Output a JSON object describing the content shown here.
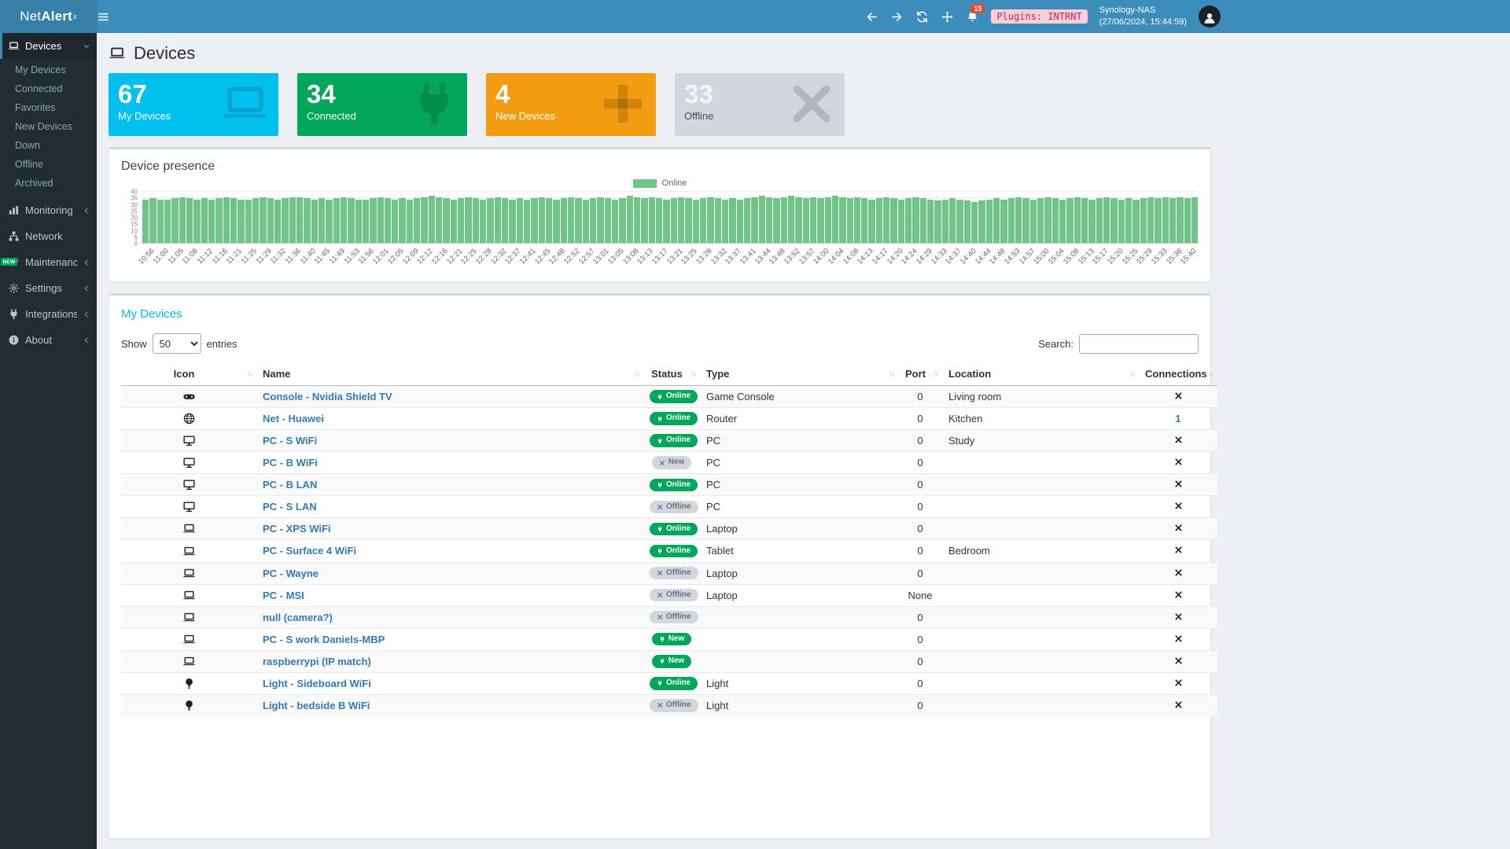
{
  "topbar": {
    "logo_light": "Net",
    "logo_bold": "Alert",
    "logo_sup": "x",
    "notification_count": "15",
    "plugins_badge": "Plugins: INTRNT",
    "host_name": "Synology-NAS",
    "host_time": "(27/06/2024, 15:44:59)"
  },
  "sidebar": {
    "devices_label": "Devices",
    "devices_sub": [
      "My Devices",
      "Connected",
      "Favorites",
      "New Devices",
      "Down",
      "Offline",
      "Archived"
    ],
    "items": [
      {
        "label": "Monitoring",
        "icon": "chart",
        "chevron": true
      },
      {
        "label": "Network",
        "icon": "network",
        "chevron": false
      },
      {
        "label": "Maintenance",
        "icon": "wrench",
        "chevron": true,
        "badge": "NEW"
      },
      {
        "label": "Settings",
        "icon": "gear",
        "chevron": true
      },
      {
        "label": "Integrations",
        "icon": "plug",
        "chevron": true
      },
      {
        "label": "About",
        "icon": "info",
        "chevron": true
      }
    ]
  },
  "page": {
    "title": "Devices"
  },
  "infoboxes": [
    {
      "value": "67",
      "label": "My Devices",
      "icon": "laptop",
      "color": "#00c0ef"
    },
    {
      "value": "34",
      "label": "Connected",
      "icon": "plug",
      "color": "#00a65a"
    },
    {
      "value": "4",
      "label": "New Devices",
      "icon": "plus",
      "color": "#f39c12"
    },
    {
      "value": "33",
      "label": "Offline",
      "icon": "times",
      "color": "#d2d6de",
      "dark_text": true
    }
  ],
  "presence": {
    "title": "Device presence"
  },
  "chart_data": {
    "type": "bar",
    "title": "Device presence",
    "legend": [
      "Online"
    ],
    "legend_position": "top-center",
    "color": "#70c487",
    "grid": true,
    "ylim": [
      0,
      40
    ],
    "yticks": [
      0,
      5,
      10,
      15,
      20,
      25,
      30,
      35,
      40
    ],
    "x_labels": [
      "10:56",
      "11:00",
      "11:05",
      "11:08",
      "11:12",
      "11:16",
      "11:21",
      "11:25",
      "11:29",
      "11:32",
      "11:36",
      "11:40",
      "11:45",
      "11:49",
      "11:53",
      "11:56",
      "12:01",
      "12:05",
      "12:09",
      "12:12",
      "12:16",
      "12:21",
      "12:25",
      "12:28",
      "12:32",
      "12:37",
      "12:41",
      "12:45",
      "12:48",
      "12:52",
      "12:57",
      "13:01",
      "13:05",
      "13:08",
      "13:13",
      "13:17",
      "13:21",
      "13:25",
      "13:28",
      "13:32",
      "13:37",
      "13:41",
      "13:44",
      "13:48",
      "13:52",
      "13:57",
      "14:00",
      "14:04",
      "14:08",
      "14:13",
      "14:17",
      "14:20",
      "14:24",
      "14:29",
      "14:33",
      "14:37",
      "14:40",
      "14:44",
      "14:48",
      "14:53",
      "14:57",
      "15:00",
      "15:04",
      "15:08",
      "15:13",
      "15:17",
      "15:20",
      "15:25",
      "15:29",
      "15:33",
      "15:36",
      "15:40"
    ],
    "values": [
      34,
      35,
      34,
      34,
      35,
      36,
      35,
      34,
      35,
      34,
      35,
      36,
      35,
      34,
      34,
      35,
      36,
      35,
      34,
      35,
      36,
      36,
      35,
      34,
      35,
      34,
      35,
      36,
      35,
      34,
      34,
      35,
      36,
      35,
      34,
      35,
      34,
      35,
      36,
      37,
      36,
      35,
      34,
      35,
      36,
      35,
      34,
      35,
      36,
      35,
      34,
      35,
      34,
      35,
      36,
      35,
      34,
      35,
      36,
      35,
      34,
      35,
      36,
      35,
      34,
      35,
      37,
      36,
      35,
      36,
      35,
      34,
      35,
      36,
      35,
      34,
      35,
      36,
      35,
      34,
      35,
      34,
      35,
      36,
      37,
      36,
      35,
      36,
      37,
      36,
      35,
      36,
      35,
      36,
      37,
      36,
      35,
      36,
      35,
      34,
      35,
      36,
      35,
      34,
      35,
      36,
      35,
      34,
      33,
      34,
      35,
      34,
      33,
      32,
      33,
      34,
      35,
      34,
      35,
      36,
      35,
      34,
      35,
      36,
      35,
      34,
      35,
      36,
      35,
      34,
      35,
      36,
      35,
      34,
      35,
      34,
      35,
      36,
      35,
      36,
      35,
      36,
      35,
      36
    ]
  },
  "devices_panel": {
    "title": "My Devices",
    "show_label": "Show",
    "page_size": "50",
    "entries_label": "entries",
    "search_label": "Search:",
    "columns": [
      "Icon",
      "Name",
      "Status",
      "Type",
      "Port",
      "Location",
      "Connections"
    ],
    "status_styles": {
      "online": {
        "bg": "#00a65a",
        "fg": "#ffffff",
        "icon": "plug"
      },
      "offline": {
        "bg": "#d2d6de",
        "fg": "#6b7178",
        "icon": "times"
      },
      "new-gray": {
        "bg": "#d2d6de",
        "fg": "#6b7178",
        "icon": "times"
      },
      "new-green": {
        "bg": "#00a65a",
        "fg": "#ffffff",
        "icon": "plug"
      }
    },
    "rows": [
      {
        "icon": "gamepad",
        "name": "Console - Nvidia Shield TV",
        "status": "Online",
        "status_type": "online",
        "type": "Game Console",
        "port": "0",
        "location": "Living room",
        "connections": "x"
      },
      {
        "icon": "globe",
        "name": "Net - Huawei",
        "status": "Online",
        "status_type": "online",
        "type": "Router",
        "port": "0",
        "location": "Kitchen",
        "connections": "1",
        "connections_is_link": true
      },
      {
        "icon": "desktop",
        "name": "PC - S WiFi",
        "status": "Online",
        "status_type": "online",
        "type": "PC",
        "port": "0",
        "location": "Study",
        "connections": "x"
      },
      {
        "icon": "desktop",
        "name": "PC - B WiFi",
        "status": "New",
        "status_type": "new-gray",
        "type": "PC",
        "port": "0",
        "location": "",
        "connections": "x"
      },
      {
        "icon": "desktop",
        "name": "PC - B LAN",
        "status": "Online",
        "status_type": "online",
        "type": "PC",
        "port": "0",
        "location": "",
        "connections": "x"
      },
      {
        "icon": "desktop",
        "name": "PC - S LAN",
        "status": "Offline",
        "status_type": "offline",
        "type": "PC",
        "port": "0",
        "location": "",
        "connections": "x"
      },
      {
        "icon": "laptop",
        "name": "PC - XPS WiFi",
        "status": "Online",
        "status_type": "online",
        "type": "Laptop",
        "port": "0",
        "location": "",
        "connections": "x"
      },
      {
        "icon": "laptop",
        "name": "PC - Surface 4 WiFi",
        "status": "Online",
        "status_type": "online",
        "type": "Tablet",
        "port": "0",
        "location": "Bedroom",
        "connections": "x"
      },
      {
        "icon": "laptop",
        "name": "PC - Wayne",
        "status": "Offline",
        "status_type": "offline",
        "type": "Laptop",
        "port": "0",
        "location": "",
        "connections": "x"
      },
      {
        "icon": "laptop",
        "name": "PC - MSI",
        "status": "Offline",
        "status_type": "offline",
        "type": "Laptop",
        "port": "None",
        "location": "",
        "connections": "x"
      },
      {
        "icon": "laptop",
        "name": "null (camera?)",
        "status": "Offline",
        "status_type": "offline",
        "type": "",
        "port": "0",
        "location": "",
        "connections": "x"
      },
      {
        "icon": "laptop",
        "name": "PC - S work Daniels-MBP",
        "status": "New",
        "status_type": "new-green",
        "type": "",
        "port": "0",
        "location": "",
        "connections": "x"
      },
      {
        "icon": "laptop",
        "name": "raspberrypi (IP match)",
        "status": "New",
        "status_type": "new-green",
        "type": "",
        "port": "0",
        "location": "",
        "connections": "x"
      },
      {
        "icon": "lightbulb",
        "name": "Light - Sideboard WiFi",
        "status": "Online",
        "status_type": "online",
        "type": "Light",
        "port": "0",
        "location": "",
        "connections": "x"
      },
      {
        "icon": "lightbulb",
        "name": "Light - bedside B WiFi",
        "status": "Offline",
        "status_type": "offline",
        "type": "Light",
        "port": "0",
        "location": "",
        "connections": "x"
      }
    ]
  }
}
